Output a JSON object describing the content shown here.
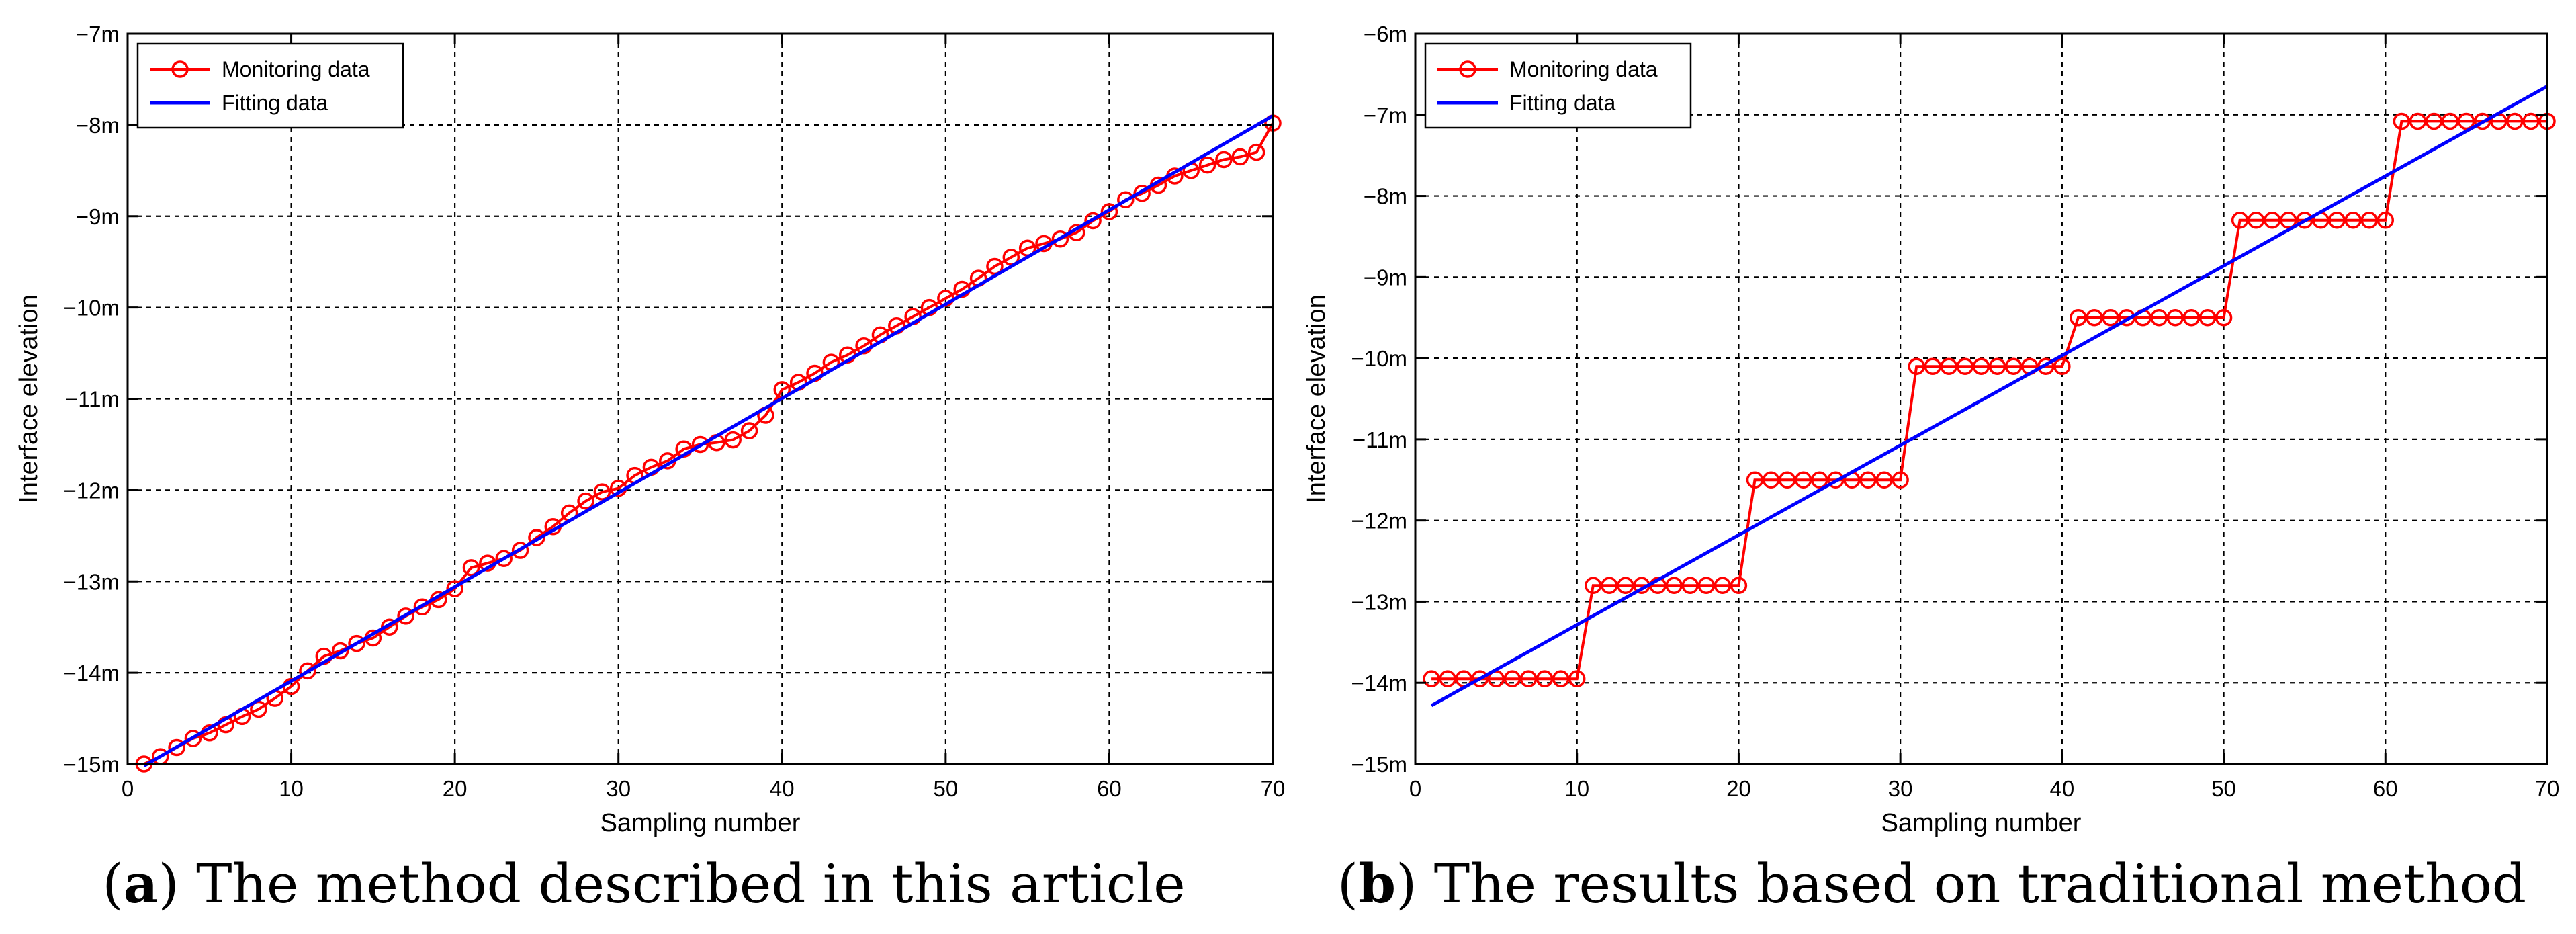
{
  "chart_data": [
    {
      "type": "line",
      "panel_label": "a",
      "caption": "The method described in this article",
      "xlabel": "Sampling number",
      "ylabel": "Interface elevation",
      "xlim": [
        0,
        70
      ],
      "ylim": [
        -15,
        -7
      ],
      "x_ticks": [
        0,
        10,
        20,
        30,
        40,
        50,
        60,
        70
      ],
      "y_ticks": [
        -15,
        -14,
        -13,
        -12,
        -11,
        -10,
        -9,
        -8,
        -7
      ],
      "y_tick_labels": [
        "−15m",
        "−14m",
        "−13m",
        "−12m",
        "−11m",
        "−10m",
        "−9m",
        "−8m",
        "−7m"
      ],
      "grid": true,
      "legend_position": "top-left",
      "series": [
        {
          "name": "Monitoring data",
          "color": "#ff0000",
          "marker": "circle",
          "x": [
            1,
            2,
            3,
            4,
            5,
            6,
            7,
            8,
            9,
            10,
            11,
            12,
            13,
            14,
            15,
            16,
            17,
            18,
            19,
            20,
            21,
            22,
            23,
            24,
            25,
            26,
            27,
            28,
            29,
            30,
            31,
            32,
            33,
            34,
            35,
            36,
            37,
            38,
            39,
            40,
            41,
            42,
            43,
            44,
            45,
            46,
            47,
            48,
            49,
            50,
            51,
            52,
            53,
            54,
            55,
            56,
            57,
            58,
            59,
            60,
            61,
            62,
            63,
            64,
            65,
            66,
            67,
            68,
            69,
            70
          ],
          "y": [
            -15.0,
            -14.92,
            -14.82,
            -14.72,
            -14.66,
            -14.57,
            -14.48,
            -14.4,
            -14.28,
            -14.15,
            -13.98,
            -13.82,
            -13.76,
            -13.68,
            -13.62,
            -13.5,
            -13.38,
            -13.28,
            -13.2,
            -13.08,
            -12.85,
            -12.8,
            -12.75,
            -12.66,
            -12.52,
            -12.4,
            -12.25,
            -12.12,
            -12.02,
            -11.98,
            -11.84,
            -11.75,
            -11.68,
            -11.55,
            -11.5,
            -11.48,
            -11.45,
            -11.35,
            -11.18,
            -10.9,
            -10.82,
            -10.72,
            -10.6,
            -10.52,
            -10.42,
            -10.3,
            -10.2,
            -10.1,
            -10.0,
            -9.9,
            -9.8,
            -9.68,
            -9.55,
            -9.45,
            -9.35,
            -9.3,
            -9.25,
            -9.18,
            -9.05,
            -8.95,
            -8.82,
            -8.75,
            -8.66,
            -8.56,
            -8.5,
            -8.44,
            -8.38,
            -8.35,
            -8.3,
            -7.98
          ]
        },
        {
          "name": "Fitting data",
          "color": "#0000ff",
          "marker": "none",
          "x": [
            1,
            70
          ],
          "y": [
            -15.02,
            -7.9
          ]
        }
      ]
    },
    {
      "type": "line",
      "panel_label": "b",
      "caption": "The results based on traditional method",
      "xlabel": "Sampling number",
      "ylabel": "Interface elevation",
      "xlim": [
        0,
        70
      ],
      "ylim": [
        -15,
        -6
      ],
      "x_ticks": [
        0,
        10,
        20,
        30,
        40,
        50,
        60,
        70
      ],
      "y_ticks": [
        -15,
        -14,
        -13,
        -12,
        -11,
        -10,
        -9,
        -8,
        -7,
        -6
      ],
      "y_tick_labels": [
        "−15m",
        "−14m",
        "−13m",
        "−12m",
        "−11m",
        "−10m",
        "−9m",
        "−8m",
        "−7m",
        "−6m"
      ],
      "grid": true,
      "legend_position": "top-left",
      "series": [
        {
          "name": "Monitoring data",
          "color": "#ff0000",
          "marker": "circle",
          "x": [
            1,
            2,
            3,
            4,
            5,
            6,
            7,
            8,
            9,
            10,
            11,
            12,
            13,
            14,
            15,
            16,
            17,
            18,
            19,
            20,
            21,
            22,
            23,
            24,
            25,
            26,
            27,
            28,
            29,
            30,
            31,
            32,
            33,
            34,
            35,
            36,
            37,
            38,
            39,
            40,
            41,
            42,
            43,
            44,
            45,
            46,
            47,
            48,
            49,
            50,
            51,
            52,
            53,
            54,
            55,
            56,
            57,
            58,
            59,
            60,
            61,
            62,
            63,
            64,
            65,
            66,
            67,
            68,
            69,
            70
          ],
          "y": [
            -13.95,
            -13.95,
            -13.95,
            -13.95,
            -13.95,
            -13.95,
            -13.95,
            -13.95,
            -13.95,
            -13.95,
            -12.8,
            -12.8,
            -12.8,
            -12.8,
            -12.8,
            -12.8,
            -12.8,
            -12.8,
            -12.8,
            -12.8,
            -11.5,
            -11.5,
            -11.5,
            -11.5,
            -11.5,
            -11.5,
            -11.5,
            -11.5,
            -11.5,
            -11.5,
            -10.1,
            -10.1,
            -10.1,
            -10.1,
            -10.1,
            -10.1,
            -10.1,
            -10.1,
            -10.1,
            -10.1,
            -9.5,
            -9.5,
            -9.5,
            -9.5,
            -9.5,
            -9.5,
            -9.5,
            -9.5,
            -9.5,
            -9.5,
            -8.3,
            -8.3,
            -8.3,
            -8.3,
            -8.3,
            -8.3,
            -8.3,
            -8.3,
            -8.3,
            -8.3,
            -7.08,
            -7.08,
            -7.08,
            -7.08,
            -7.08,
            -7.08,
            -7.08,
            -7.08,
            -7.08,
            -7.08
          ]
        },
        {
          "name": "Fitting data",
          "color": "#0000ff",
          "marker": "none",
          "x": [
            1,
            70
          ],
          "y": [
            -14.28,
            -6.65
          ]
        }
      ]
    }
  ]
}
